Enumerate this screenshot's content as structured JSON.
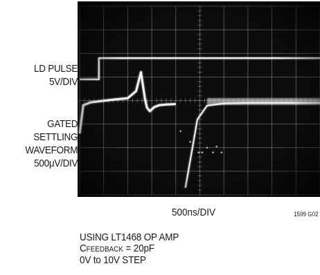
{
  "labels": {
    "ld_pulse": [
      "LD PULSE",
      "5V/DIV"
    ],
    "gated": [
      "GATED",
      "SETTLING",
      "WAVEFORM",
      "500μV/DIV"
    ],
    "timebase": "500ns/DIV",
    "figure_id": "1599 G02"
  },
  "notes": {
    "line1": "USING LT1468 OP AMP",
    "line2_main": "C",
    "line2_sub": "FEEDBACK",
    "line2_rest": " = 20pF",
    "line3": "0V to 10V STEP"
  },
  "colors": {
    "screen": "#0d0d0d",
    "grid": "#8c8c8c",
    "trace": "#f2f2f2"
  },
  "chart_data": {
    "type": "line",
    "grid": {
      "x_divisions": 10,
      "y_divisions": 8,
      "minor_ticks_per_division": 5
    },
    "timebase": "500ns/DIV",
    "series": [
      {
        "channel": "ld_pulse",
        "scale": "5V/DIV",
        "x": [
          0,
          0.8,
          0.8,
          10
        ],
        "y": [
          4.9,
          4.9,
          5.8,
          5.8
        ]
      },
      {
        "channel": "gated_settling",
        "scale": "500μV/DIV",
        "x": [
          0,
          0.15,
          0.45,
          0.9,
          1.5,
          2.0,
          2.35,
          2.55,
          2.72,
          2.8,
          2.92,
          3.1,
          3.3,
          3.6,
          4.0
        ],
        "y": [
          2.6,
          3.8,
          3.92,
          3.98,
          4.05,
          4.1,
          4.4,
          5.2,
          4.05,
          3.7,
          3.55,
          3.72,
          3.8,
          3.83,
          3.85
        ]
      },
      {
        "channel": "settling_ramp",
        "scale": "500μV/DIV",
        "x": [
          4.4,
          4.9,
          5.3,
          6.0,
          7.0,
          8.0,
          9.0,
          10.0
        ],
        "y": [
          0.3,
          3.2,
          3.78,
          3.88,
          3.9,
          3.9,
          3.9,
          3.9
        ]
      }
    ]
  }
}
